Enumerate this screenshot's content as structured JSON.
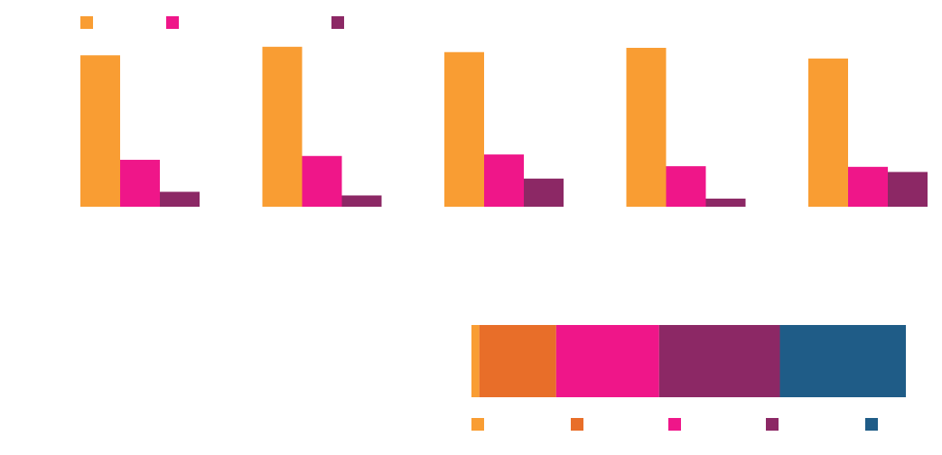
{
  "chart_data": [
    {
      "type": "bar",
      "categories": [
        "",
        "",
        "",
        "",
        ""
      ],
      "series": [
        {
          "color": "#F99D33",
          "values": [
            71,
            75,
            72.5,
            74.5,
            69.5
          ]
        },
        {
          "color": "#EF1689",
          "values": [
            22,
            23.8,
            24.5,
            19,
            18.7
          ]
        },
        {
          "color": "#8C2865",
          "values": [
            7,
            5.3,
            13.2,
            3.8,
            16.3
          ]
        }
      ],
      "ylim": [
        0,
        80
      ],
      "grid": false,
      "legend": "top-left"
    },
    {
      "type": "bar",
      "orientation": "horizontal",
      "stacked": true,
      "categories": [
        ""
      ],
      "series": [
        {
          "color": "#F99D33",
          "values": [
            1.8
          ]
        },
        {
          "color": "#E86E29",
          "values": [
            17.7
          ]
        },
        {
          "color": "#EF1689",
          "values": [
            23.7
          ]
        },
        {
          "color": "#8C2865",
          "values": [
            27.8
          ]
        },
        {
          "color": "#1F5C87",
          "values": [
            29
          ]
        }
      ],
      "xlim": [
        0,
        100
      ],
      "grid": false,
      "legend": "bottom"
    }
  ]
}
